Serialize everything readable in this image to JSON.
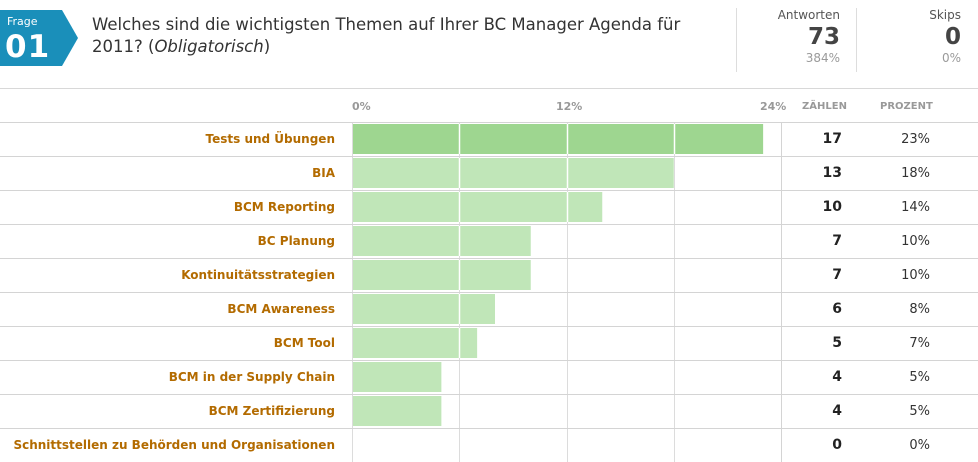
{
  "question": {
    "badge_label": "Frage",
    "badge_number": "01",
    "text_main": "Welches sind die wichtigsten Themen auf Ihrer BC Manager Agenda für 2011? (",
    "text_italic": "Obligatorisch",
    "text_end": ")"
  },
  "stats": {
    "answers_label": "Antworten",
    "answers_value": "73",
    "answers_percent": "384%",
    "skips_label": "Skips",
    "skips_value": "0",
    "skips_percent": "0%"
  },
  "colors": {
    "badge": "#1a8fba",
    "bar": "#c0e6b8",
    "bar_max": "#9ed690",
    "label": "#b36b00"
  },
  "columns": {
    "count": "ZÄHLEN",
    "percent": "PROZENT"
  },
  "chart_data": {
    "type": "bar",
    "orientation": "horizontal",
    "xlim": [
      0,
      24
    ],
    "x_ticks": [
      "0%",
      "12%",
      "24%"
    ],
    "categories": [
      "Tests und Übungen",
      "BIA",
      "BCM Reporting",
      "BC Planung",
      "Kontinuitätsstrategien",
      "BCM Awareness",
      "BCM Tool",
      "BCM in der Supply Chain",
      "BCM Zertifizierung",
      "Schnittstellen zu Behörden und Organisationen"
    ],
    "values": [
      23,
      18,
      14,
      10,
      10,
      8,
      7,
      5,
      5,
      0
    ],
    "counts": [
      "17",
      "13",
      "10",
      "7",
      "7",
      "6",
      "5",
      "4",
      "4",
      "0"
    ],
    "percent_labels": [
      "23%",
      "18%",
      "14%",
      "10%",
      "10%",
      "8%",
      "7%",
      "5%",
      "5%",
      "0%"
    ]
  }
}
